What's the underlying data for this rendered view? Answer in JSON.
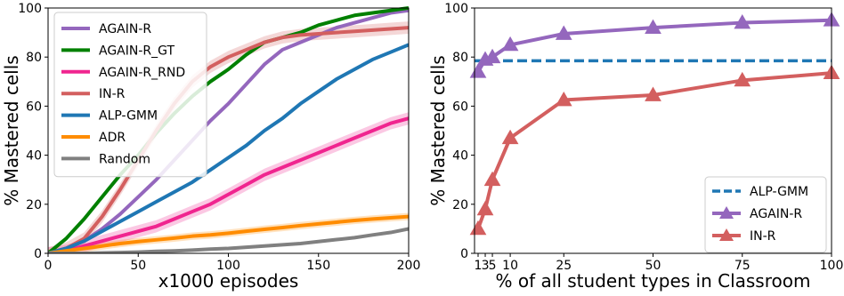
{
  "chart_data": [
    {
      "type": "line",
      "title": "",
      "xlabel": "x1000 episodes",
      "ylabel": "% Mastered cells",
      "xlim": [
        0,
        200
      ],
      "ylim": [
        0,
        100
      ],
      "xticks": [
        0,
        50,
        100,
        150,
        200
      ],
      "yticks": [
        0,
        20,
        40,
        60,
        80,
        100
      ],
      "grid": false,
      "legend_position": "top-left",
      "series": [
        {
          "name": "AGAIN-R",
          "color": "#9467bd",
          "x": [
            0,
            10,
            20,
            30,
            40,
            50,
            60,
            70,
            80,
            90,
            100,
            110,
            120,
            130,
            140,
            150,
            160,
            170,
            180,
            190,
            200
          ],
          "y": [
            0,
            2,
            5,
            10,
            16,
            23,
            30,
            38,
            46,
            54,
            61,
            69,
            77,
            83,
            86,
            89,
            92,
            94,
            96,
            98,
            99
          ]
        },
        {
          "name": "AGAIN-R_GT",
          "color": "#008000",
          "x": [
            0,
            10,
            20,
            30,
            40,
            50,
            60,
            70,
            80,
            90,
            100,
            110,
            120,
            130,
            140,
            150,
            160,
            170,
            180,
            190,
            200
          ],
          "y": [
            0,
            6,
            14,
            23,
            32,
            40,
            49,
            57,
            64,
            70,
            75,
            81,
            86,
            88,
            90,
            93,
            95,
            97,
            98,
            99,
            100
          ]
        },
        {
          "name": "AGAIN-R_RND",
          "color": "#f0258f",
          "band": 2.5,
          "x": [
            0,
            10,
            20,
            30,
            40,
            50,
            60,
            70,
            80,
            90,
            100,
            110,
            120,
            130,
            140,
            150,
            160,
            170,
            180,
            190,
            200
          ],
          "y": [
            0,
            1,
            3,
            5,
            7,
            9,
            11,
            14,
            17,
            20,
            24,
            28,
            32,
            35,
            38,
            41,
            44,
            47,
            50,
            53,
            55
          ]
        },
        {
          "name": "IN-R",
          "color": "#d35f5f",
          "band": 2.5,
          "x": [
            0,
            10,
            20,
            30,
            40,
            50,
            60,
            70,
            80,
            90,
            100,
            110,
            120,
            130,
            140,
            150,
            160,
            170,
            180,
            190,
            200
          ],
          "y": [
            0,
            2,
            6,
            15,
            26,
            38,
            50,
            61,
            70,
            76,
            80,
            83,
            86,
            88,
            89,
            89.5,
            90,
            90.5,
            91,
            91.5,
            92
          ]
        },
        {
          "name": "ALP-GMM",
          "color": "#1f77b4",
          "x": [
            0,
            10,
            20,
            30,
            40,
            50,
            60,
            70,
            80,
            90,
            100,
            110,
            120,
            130,
            140,
            150,
            160,
            170,
            180,
            190,
            200
          ],
          "y": [
            0,
            2,
            5,
            9,
            13,
            17,
            21,
            25,
            29,
            34,
            39,
            44,
            50,
            55,
            61,
            66,
            71,
            75,
            79,
            82,
            85
          ]
        },
        {
          "name": "ADR",
          "color": "#ff8c00",
          "band": 1.5,
          "x": [
            0,
            10,
            20,
            30,
            40,
            50,
            60,
            70,
            80,
            90,
            100,
            110,
            120,
            130,
            140,
            150,
            160,
            170,
            180,
            190,
            200
          ],
          "y": [
            0,
            1,
            2,
            3,
            4,
            4.8,
            5.5,
            6.2,
            7,
            7.5,
            8.2,
            9,
            9.8,
            10.5,
            11.3,
            12,
            12.7,
            13.4,
            14,
            14.5,
            15
          ]
        },
        {
          "name": "Random",
          "color": "#808080",
          "x": [
            0,
            10,
            20,
            30,
            40,
            50,
            60,
            70,
            80,
            90,
            100,
            110,
            120,
            130,
            140,
            150,
            160,
            170,
            180,
            190,
            200
          ],
          "y": [
            0,
            0,
            0,
            0.2,
            0.3,
            0.5,
            0.8,
            1,
            1.3,
            1.7,
            2,
            2.5,
            3,
            3.5,
            4,
            4.8,
            5.6,
            6.4,
            7.5,
            8.5,
            10
          ]
        }
      ]
    },
    {
      "type": "line",
      "title": "",
      "xlabel": "% of all student types in Classroom",
      "ylabel": "% Mastered cells",
      "xlim": [
        0,
        100
      ],
      "ylim": [
        0,
        100
      ],
      "xticks": [
        1,
        3,
        5,
        10,
        25,
        50,
        75,
        100
      ],
      "xtick_labels": [
        "1",
        "3",
        "5",
        "10",
        "25",
        "50",
        "75",
        "100"
      ],
      "yticks": [
        0,
        20,
        40,
        60,
        80,
        100
      ],
      "grid": false,
      "legend_position": "bottom-right",
      "series": [
        {
          "name": "ALP-GMM",
          "color": "#1f77b4",
          "style": "dashed",
          "x": [
            0,
            100
          ],
          "y": [
            78.5,
            78.5
          ]
        },
        {
          "name": "AGAIN-R",
          "color": "#9467bd",
          "marker": "triangle",
          "x": [
            1,
            3,
            5,
            10,
            25,
            50,
            75,
            100
          ],
          "y": [
            74,
            79,
            80,
            85,
            89.5,
            92,
            94,
            95
          ]
        },
        {
          "name": "IN-R",
          "color": "#d35f5f",
          "marker": "triangle",
          "x": [
            1,
            3,
            5,
            10,
            25,
            50,
            75,
            100
          ],
          "y": [
            10,
            18,
            30,
            47,
            62.5,
            64.5,
            70.5,
            73.5
          ]
        }
      ]
    }
  ]
}
